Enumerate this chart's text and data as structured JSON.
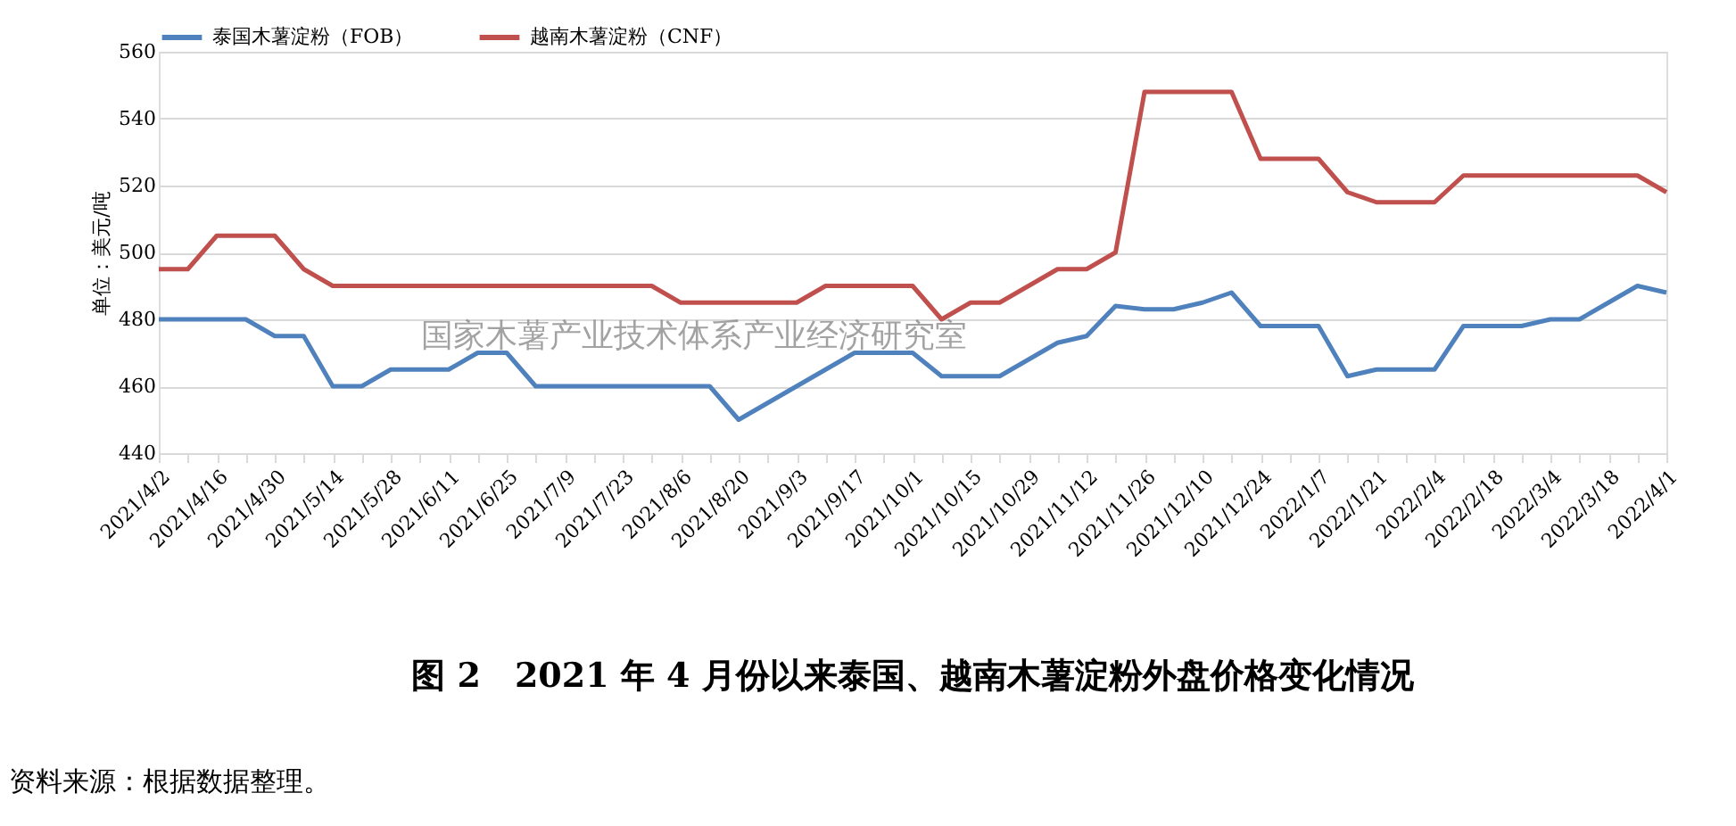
{
  "chart_data": {
    "type": "line",
    "title": "图 2　2021 年 4 月份以来泰国、越南木薯淀粉外盘价格变化情况",
    "ylabel": "单位：美元/吨",
    "categories": [
      "2021/4/2",
      null,
      "2021/4/16",
      null,
      "2021/4/30",
      null,
      "2021/5/14",
      null,
      "2021/5/28",
      null,
      "2021/6/11",
      null,
      "2021/6/25",
      null,
      "2021/7/9",
      null,
      "2021/7/23",
      null,
      "2021/8/6",
      null,
      "2021/8/20",
      null,
      "2021/9/3",
      null,
      "2021/9/17",
      null,
      "2021/10/1",
      null,
      "2021/10/15",
      null,
      "2021/10/29",
      null,
      "2021/11/12",
      null,
      "2021/11/26",
      null,
      "2021/12/10",
      null,
      "2021/12/24",
      null,
      "2022/1/7",
      null,
      "2022/1/21",
      null,
      "2022/2/4",
      null,
      "2022/2/18",
      null,
      "2022/3/4",
      null,
      "2022/3/18",
      null,
      "2022/4/1"
    ],
    "series": [
      {
        "name": "泰国木薯淀粉（FOB）",
        "color": "#4f81bd",
        "values": [
          480,
          480,
          480,
          480,
          475,
          475,
          460,
          460,
          465,
          465,
          465,
          470,
          470,
          460,
          460,
          460,
          460,
          460,
          460,
          460,
          450,
          455,
          460,
          465,
          470,
          470,
          470,
          463,
          463,
          463,
          468,
          473,
          475,
          484,
          483,
          483,
          485,
          488,
          478,
          478,
          478,
          463,
          465,
          465,
          465,
          478,
          478,
          478,
          480,
          480,
          485,
          490,
          488
        ]
      },
      {
        "name": "越南木薯淀粉（CNF）",
        "color": "#c0504d",
        "values": [
          495,
          495,
          505,
          505,
          505,
          495,
          490,
          490,
          490,
          490,
          490,
          490,
          490,
          490,
          490,
          490,
          490,
          490,
          485,
          485,
          485,
          485,
          485,
          490,
          490,
          490,
          490,
          480,
          485,
          485,
          490,
          495,
          495,
          500,
          548,
          548,
          548,
          548,
          528,
          528,
          528,
          518,
          515,
          515,
          515,
          523,
          523,
          523,
          523,
          523,
          523,
          523,
          518
        ]
      }
    ],
    "ylim": [
      440,
      560
    ],
    "yticks": [
      440,
      460,
      480,
      500,
      520,
      540,
      560
    ],
    "grid": "y",
    "legend": "top",
    "marker": "none",
    "line_style": "solid",
    "annotations": [
      "国家木薯产业技术体系产业经济研究室",
      "资料来源：根据数据整理。"
    ]
  }
}
